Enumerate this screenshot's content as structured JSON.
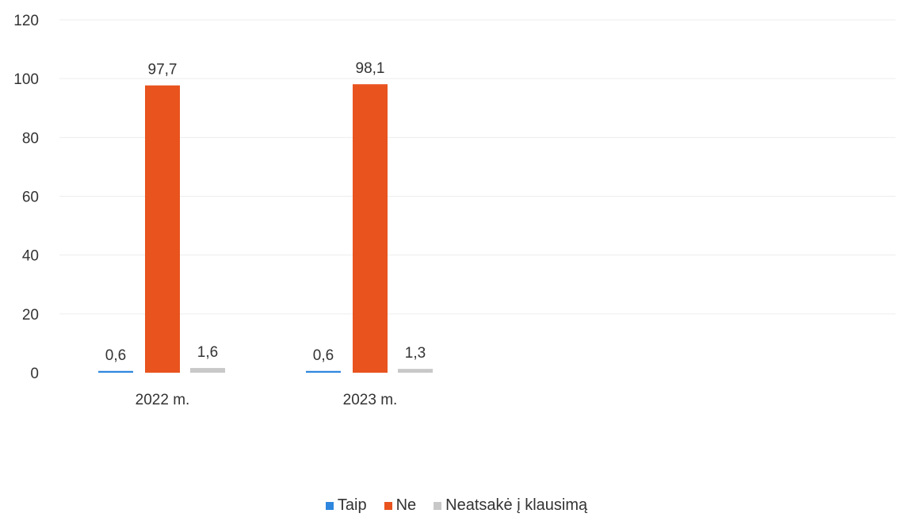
{
  "chart_data": {
    "type": "bar",
    "categories": [
      "2022 m.",
      "2023 m."
    ],
    "series": [
      {
        "name": "Taip",
        "values": [
          0.6,
          0.6
        ],
        "color": "#2E86DE"
      },
      {
        "name": "Ne",
        "values": [
          97.7,
          98.1
        ],
        "color": "#E8531E"
      },
      {
        "name": "Neatsakė į klausimą",
        "values": [
          1.6,
          1.3
        ],
        "color": "#C8C8C8"
      }
    ],
    "data_labels": [
      [
        "0,6",
        "0,6"
      ],
      [
        "97,7",
        "98,1"
      ],
      [
        "1,6",
        "1,3"
      ]
    ],
    "y_ticks": [
      "0",
      "20",
      "40",
      "60",
      "80",
      "100",
      "120"
    ],
    "ylim": [
      0,
      120
    ],
    "grid": true,
    "legend_position": "bottom-center",
    "title": "",
    "xlabel": "",
    "ylabel": ""
  }
}
